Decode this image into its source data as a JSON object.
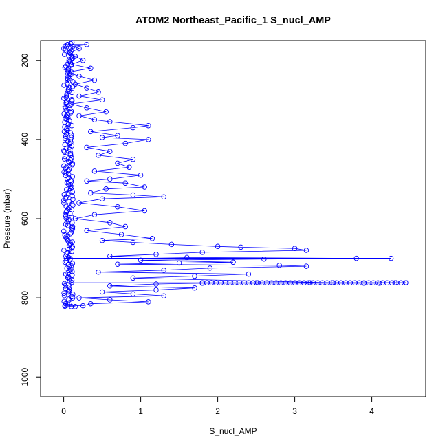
{
  "chart_data": {
    "type": "scatter",
    "title": "ATOM2 Northeast_Pacific_1 S_nucl_AMP",
    "xlabel": "S_nucl_AMP",
    "ylabel": "Pressure (mbar)",
    "xlim": [
      -0.3,
      4.7
    ],
    "ylim": [
      1050,
      150
    ],
    "y_reversed": true,
    "x_ticks": [
      0,
      1,
      2,
      3,
      4
    ],
    "y_ticks": [
      200,
      400,
      600,
      800,
      1000
    ],
    "x_tick_labels": [
      "0",
      "1",
      "2",
      "3",
      "4"
    ],
    "y_tick_labels": [
      "200",
      "400",
      "600",
      "800",
      "1000"
    ],
    "grid": false,
    "legend": "none",
    "color": "#0000ff",
    "marker": "open-circle",
    "series": [
      {
        "values_note_free": true,
        "points": [
          [
            0.05,
            160
          ],
          [
            0.12,
            165
          ],
          [
            0.2,
            170
          ],
          [
            0.3,
            160
          ],
          [
            0.08,
            180
          ],
          [
            0.15,
            190
          ],
          [
            0.25,
            200
          ],
          [
            0.1,
            210
          ],
          [
            0.35,
            220
          ],
          [
            0.05,
            230
          ],
          [
            0.2,
            240
          ],
          [
            0.4,
            250
          ],
          [
            0.15,
            260
          ],
          [
            0.3,
            270
          ],
          [
            0.45,
            280
          ],
          [
            0.2,
            290
          ],
          [
            0.5,
            300
          ],
          [
            0.1,
            310
          ],
          [
            0.3,
            320
          ],
          [
            0.55,
            330
          ],
          [
            0.2,
            340
          ],
          [
            0.4,
            350
          ],
          [
            0.6,
            355
          ],
          [
            1.1,
            365
          ],
          [
            0.9,
            370
          ],
          [
            0.35,
            380
          ],
          [
            0.7,
            390
          ],
          [
            0.5,
            395
          ],
          [
            1.1,
            400
          ],
          [
            0.8,
            410
          ],
          [
            0.3,
            420
          ],
          [
            0.6,
            430
          ],
          [
            0.45,
            440
          ],
          [
            0.9,
            450
          ],
          [
            0.7,
            460
          ],
          [
            0.85,
            470
          ],
          [
            0.4,
            480
          ],
          [
            1.0,
            490
          ],
          [
            0.6,
            500
          ],
          [
            0.3,
            505
          ],
          [
            0.8,
            510
          ],
          [
            1.05,
            520
          ],
          [
            0.55,
            525
          ],
          [
            0.35,
            535
          ],
          [
            0.9,
            540
          ],
          [
            1.3,
            545
          ],
          [
            0.5,
            550
          ],
          [
            0.2,
            560
          ],
          [
            0.7,
            570
          ],
          [
            1.05,
            580
          ],
          [
            0.4,
            590
          ],
          [
            0.15,
            600
          ],
          [
            0.6,
            610
          ],
          [
            0.8,
            620
          ],
          [
            0.3,
            630
          ],
          [
            0.75,
            640
          ],
          [
            1.15,
            650
          ],
          [
            0.5,
            655
          ],
          [
            0.9,
            660
          ],
          [
            1.4,
            665
          ],
          [
            2.0,
            670
          ],
          [
            2.3,
            672
          ],
          [
            3.0,
            675
          ],
          [
            3.15,
            680
          ],
          [
            1.8,
            685
          ],
          [
            1.2,
            690
          ],
          [
            0.6,
            695
          ],
          [
            1.6,
            698
          ],
          [
            3.8,
            700
          ],
          [
            4.25,
            700
          ],
          [
            2.6,
            702
          ],
          [
            1.0,
            705
          ],
          [
            2.2,
            710
          ],
          [
            1.5,
            712
          ],
          [
            0.7,
            715
          ],
          [
            2.8,
            718
          ],
          [
            3.15,
            720
          ],
          [
            1.9,
            725
          ],
          [
            1.3,
            730
          ],
          [
            0.45,
            735
          ],
          [
            2.4,
            740
          ],
          [
            1.7,
            745
          ],
          [
            0.9,
            750
          ],
          [
            3.5,
            762
          ],
          [
            4.1,
            763
          ],
          [
            4.45,
            762
          ],
          [
            4.3,
            762
          ],
          [
            3.9,
            763
          ],
          [
            3.2,
            762
          ],
          [
            2.5,
            762
          ],
          [
            1.8,
            763
          ],
          [
            1.2,
            765
          ],
          [
            0.6,
            770
          ],
          [
            1.7,
            775
          ],
          [
            1.2,
            780
          ],
          [
            0.5,
            785
          ],
          [
            0.9,
            790
          ],
          [
            1.3,
            795
          ],
          [
            0.2,
            800
          ],
          [
            0.6,
            805
          ],
          [
            1.1,
            810
          ],
          [
            0.35,
            815
          ],
          [
            0.25,
            820
          ],
          [
            0.1,
            822
          ],
          [
            0.02,
            820
          ],
          [
            0.15,
            822
          ]
        ]
      }
    ]
  }
}
